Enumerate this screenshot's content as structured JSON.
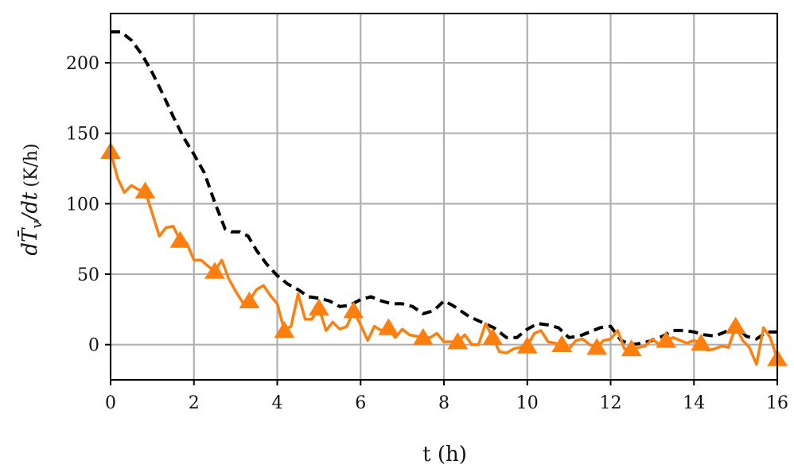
{
  "chart_data": {
    "type": "line",
    "xlabel": "t (h)",
    "ylabel_main": "dT̄",
    "ylabel_sub": "v",
    "ylabel_tail": "/dt",
    "ylabel_unit": "(K/h)",
    "xlim": [
      0,
      16
    ],
    "ylim": [
      -25,
      235
    ],
    "xticks": [
      0,
      2,
      4,
      6,
      8,
      10,
      12,
      14,
      16
    ],
    "yticks": [
      0,
      50,
      100,
      150,
      200
    ],
    "grid": true,
    "series": [
      {
        "style": "dashed",
        "color": "#000000",
        "marker": "none",
        "x": [
          0,
          0.25,
          0.5,
          0.75,
          1.0,
          1.25,
          1.5,
          1.75,
          2.0,
          2.25,
          2.5,
          2.75,
          2.9,
          3.1,
          3.3,
          3.5,
          3.75,
          4.0,
          4.25,
          4.5,
          4.75,
          5.0,
          5.25,
          5.5,
          5.75,
          6.0,
          6.25,
          6.5,
          6.75,
          7.0,
          7.25,
          7.5,
          7.75,
          8.0,
          8.2,
          8.4,
          8.6,
          8.9,
          9.2,
          9.5,
          9.75,
          10.0,
          10.25,
          10.5,
          10.75,
          11.0,
          11.25,
          11.5,
          11.75,
          12.0,
          12.25,
          12.5,
          12.75,
          13.0,
          13.25,
          13.5,
          13.75,
          14.0,
          14.25,
          14.5,
          14.75,
          15.0,
          15.25,
          15.5,
          15.75,
          16.0
        ],
        "y": [
          222,
          222,
          216,
          206,
          193,
          178,
          162,
          147,
          135,
          122,
          101,
          82,
          80,
          80,
          77,
          67,
          57,
          49,
          43,
          39,
          34,
          33,
          31,
          27,
          28,
          32,
          34,
          31,
          29,
          29,
          27,
          22,
          24,
          31,
          28,
          24,
          20,
          16,
          12,
          5,
          5,
          11,
          15,
          14,
          12,
          5,
          6,
          9,
          12,
          13,
          3,
          0,
          1,
          3,
          6,
          10,
          10,
          9,
          7,
          6,
          9,
          14,
          6,
          4,
          9,
          9
        ]
      },
      {
        "style": "solid",
        "color": "#ff7f0e",
        "marker": "triangle",
        "x": [
          0,
          0.17,
          0.33,
          0.5,
          0.67,
          0.83,
          1.0,
          1.17,
          1.33,
          1.5,
          1.67,
          1.83,
          2.0,
          2.17,
          2.33,
          2.5,
          2.67,
          2.83,
          3.0,
          3.17,
          3.33,
          3.5,
          3.67,
          3.83,
          4.0,
          4.17,
          4.33,
          4.5,
          4.67,
          4.83,
          5.0,
          5.17,
          5.33,
          5.5,
          5.67,
          5.83,
          6.0,
          6.17,
          6.33,
          6.5,
          6.67,
          6.83,
          7.0,
          7.17,
          7.33,
          7.5,
          7.67,
          7.83,
          8.0,
          8.17,
          8.33,
          8.5,
          8.67,
          8.83,
          9.0,
          9.17,
          9.33,
          9.5,
          9.67,
          9.83,
          10.0,
          10.17,
          10.33,
          10.5,
          10.67,
          10.83,
          11.0,
          11.17,
          11.33,
          11.5,
          11.67,
          11.83,
          12.0,
          12.17,
          12.33,
          12.5,
          12.67,
          12.83,
          13.0,
          13.17,
          13.33,
          13.5,
          13.67,
          13.83,
          14.0,
          14.17,
          14.33,
          14.5,
          14.67,
          14.83,
          15.0,
          15.17,
          15.33,
          15.5,
          15.67,
          15.83,
          16.0
        ],
        "y": [
          137,
          118,
          108,
          113,
          110,
          109,
          93,
          77,
          83,
          84,
          74,
          72,
          60,
          60,
          56,
          52,
          60,
          47,
          38,
          30,
          31,
          39,
          42,
          35,
          29,
          10,
          13,
          36,
          18,
          18,
          26,
          10,
          16,
          11,
          13,
          24,
          14,
          3,
          13,
          10,
          12,
          5,
          11,
          7,
          6,
          5,
          5,
          8,
          2,
          2,
          2,
          7,
          0,
          0,
          15,
          5,
          -5,
          -6,
          -3,
          -2,
          -1,
          8,
          10,
          2,
          1,
          0,
          -3,
          3,
          4,
          0,
          -2,
          3,
          4,
          10,
          -3,
          -3,
          -2,
          -1,
          4,
          0,
          3,
          5,
          3,
          1,
          3,
          1,
          -4,
          -3,
          -1,
          -2,
          13,
          3,
          -2,
          -14,
          12,
          5,
          -10
        ],
        "markers_at": [
          0,
          5,
          10,
          15,
          20,
          25,
          30,
          35,
          40,
          45,
          50,
          55,
          60,
          65,
          70,
          75,
          80,
          85,
          90,
          96
        ]
      }
    ]
  }
}
